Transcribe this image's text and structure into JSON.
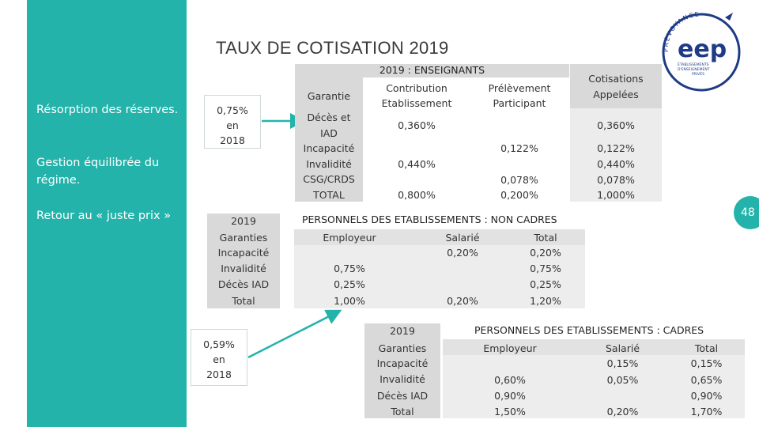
{
  "title": "TAUX DE COTISATION 2019",
  "sidebar": {
    "points": [
      "Résorption des réserves.",
      "Gestion équilibrée du régime.",
      "Retour au « juste prix »"
    ]
  },
  "cards": {
    "rate_2018_top": [
      "0,75%",
      "en",
      "2018"
    ],
    "rate_2018_bottom": [
      "0,59%",
      "en",
      "2018"
    ]
  },
  "ens": {
    "header": "2019 : ENSEIGNANTS",
    "col_garantie": "Garantie",
    "col_contrib": [
      "Contribution",
      "Etablissement"
    ],
    "col_prelev": [
      "Prélèvement",
      "Participant"
    ],
    "col_cotis": [
      "Cotisations",
      "Appelées"
    ],
    "rows": [
      "Décès et",
      "IAD",
      "Incapacité",
      "Invalidité",
      "CSG/CRDS",
      "TOTAL"
    ],
    "contrib": [
      "0,360%",
      "0,440%",
      "0,800%"
    ],
    "prelev": [
      "0,122%",
      "0,078%",
      "0,200%"
    ],
    "cotis": [
      "0,360%",
      "0,122%",
      "0,440%",
      "0,078%",
      "1,000%"
    ]
  },
  "noncadres": {
    "year": "2019",
    "header": "PERSONNELS DES ETABLISSEMENTS : NON CADRES",
    "rows": [
      "Garanties",
      "Incapacité",
      "Invalidité",
      "Décès IAD",
      "Total"
    ],
    "col_emp": "Employeur",
    "col_sal": "Salarié",
    "col_tot": "Total",
    "emp": [
      "0,75%",
      "0,25%",
      "1,00%"
    ],
    "sal": [
      "0,20%",
      "0,20%"
    ],
    "tot": [
      "0,20%",
      "0,75%",
      "0,25%",
      "1,20%"
    ]
  },
  "cadres": {
    "year": "2019",
    "header": "PERSONNELS DES ETABLISSEMENTS : CADRES",
    "rows": [
      "Garanties",
      "Incapacité",
      "Invalidité",
      "Décès IAD",
      "Total"
    ],
    "col_emp": "Employeur",
    "col_sal": "Salarié",
    "col_tot": "Total",
    "emp": [
      "0,60%",
      "0,90%",
      "1,50%"
    ],
    "sal": [
      "0,15%",
      "0,05%",
      "0,20%"
    ],
    "tot": [
      "0,15%",
      "0,65%",
      "0,90%",
      "1,70%"
    ]
  },
  "logo": {
    "arc_text": "PRÉVOYANCE",
    "brand": "eep",
    "sub": [
      "ÉTABLISSEMENTS",
      "D'ENSEIGNEMENT",
      "PRIVÉS"
    ]
  },
  "page_number": "48",
  "colors": {
    "teal": "#23b3aa",
    "navy": "#1f3b86"
  }
}
